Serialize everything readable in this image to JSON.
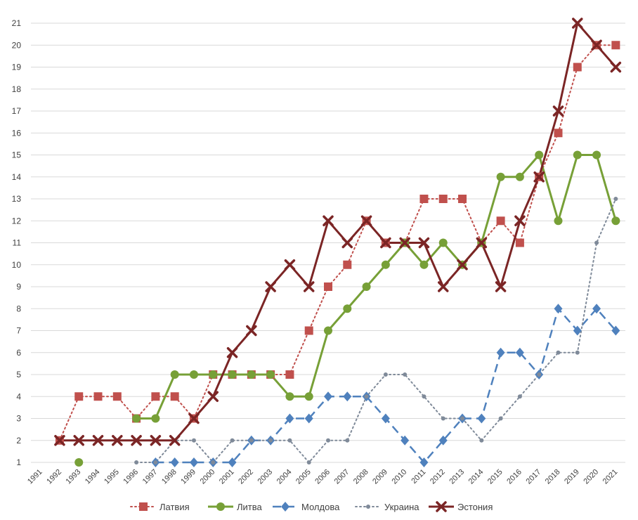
{
  "chart_data": {
    "type": "line",
    "title": "",
    "xlabel": "",
    "ylabel": "",
    "ylim": [
      1,
      21
    ],
    "y_ticks": [
      "1",
      "2",
      "3",
      "4",
      "5",
      "6",
      "7",
      "8",
      "9",
      "10",
      "11",
      "12",
      "13",
      "14",
      "15",
      "16",
      "17",
      "18",
      "19",
      "20",
      "21"
    ],
    "grid": true,
    "legend_position": "bottom",
    "categories": [
      "1991",
      "1992",
      "1993",
      "1994",
      "1995",
      "1996",
      "1997",
      "1998",
      "1999",
      "2000",
      "2001",
      "2002",
      "2003",
      "2004",
      "2005",
      "2006",
      "2007",
      "2008",
      "2009",
      "2010",
      "2011",
      "2012",
      "2013",
      "2014",
      "2015",
      "2016",
      "2017",
      "2018",
      "2019",
      "2020",
      "2021"
    ],
    "series": [
      {
        "name": "Латвия",
        "color": "#c0504d",
        "line_style": "dotted",
        "marker": "square",
        "values": [
          null,
          2,
          4,
          4,
          4,
          3,
          4,
          4,
          3,
          5,
          5,
          5,
          5,
          5,
          7,
          9,
          10,
          12,
          11,
          11,
          13,
          13,
          13,
          11,
          12,
          11,
          14,
          16,
          19,
          20,
          20
        ]
      },
      {
        "name": "Литва",
        "color": "#77a037",
        "line_style": "solid",
        "marker": "circle",
        "values": [
          null,
          null,
          1,
          null,
          null,
          3,
          3,
          5,
          5,
          5,
          5,
          5,
          5,
          4,
          4,
          7,
          8,
          9,
          10,
          11,
          10,
          11,
          10,
          11,
          14,
          14,
          15,
          12,
          15,
          15,
          12
        ]
      },
      {
        "name": "Молдова",
        "color": "#4f81bd",
        "line_style": "dashed",
        "marker": "diamond",
        "values": [
          null,
          null,
          null,
          null,
          null,
          null,
          1,
          1,
          1,
          1,
          1,
          2,
          2,
          3,
          3,
          4,
          4,
          4,
          3,
          2,
          1,
          2,
          3,
          3,
          6,
          6,
          5,
          8,
          7,
          8,
          7
        ]
      },
      {
        "name": "Украина",
        "color": "#7f8a99",
        "line_style": "dotted",
        "marker": "small-circle",
        "values": [
          null,
          null,
          null,
          null,
          null,
          1,
          1,
          2,
          2,
          1,
          2,
          2,
          2,
          2,
          1,
          2,
          2,
          4,
          5,
          5,
          4,
          3,
          3,
          2,
          3,
          4,
          5,
          6,
          6,
          11,
          13
        ]
      },
      {
        "name": "Эстония",
        "color": "#7b2525",
        "line_style": "solid",
        "marker": "x",
        "values": [
          null,
          2,
          2,
          2,
          2,
          2,
          2,
          2,
          3,
          4,
          6,
          7,
          9,
          10,
          9,
          12,
          11,
          12,
          11,
          11,
          11,
          9,
          10,
          11,
          9,
          12,
          14,
          17,
          21,
          20,
          19
        ]
      }
    ]
  }
}
